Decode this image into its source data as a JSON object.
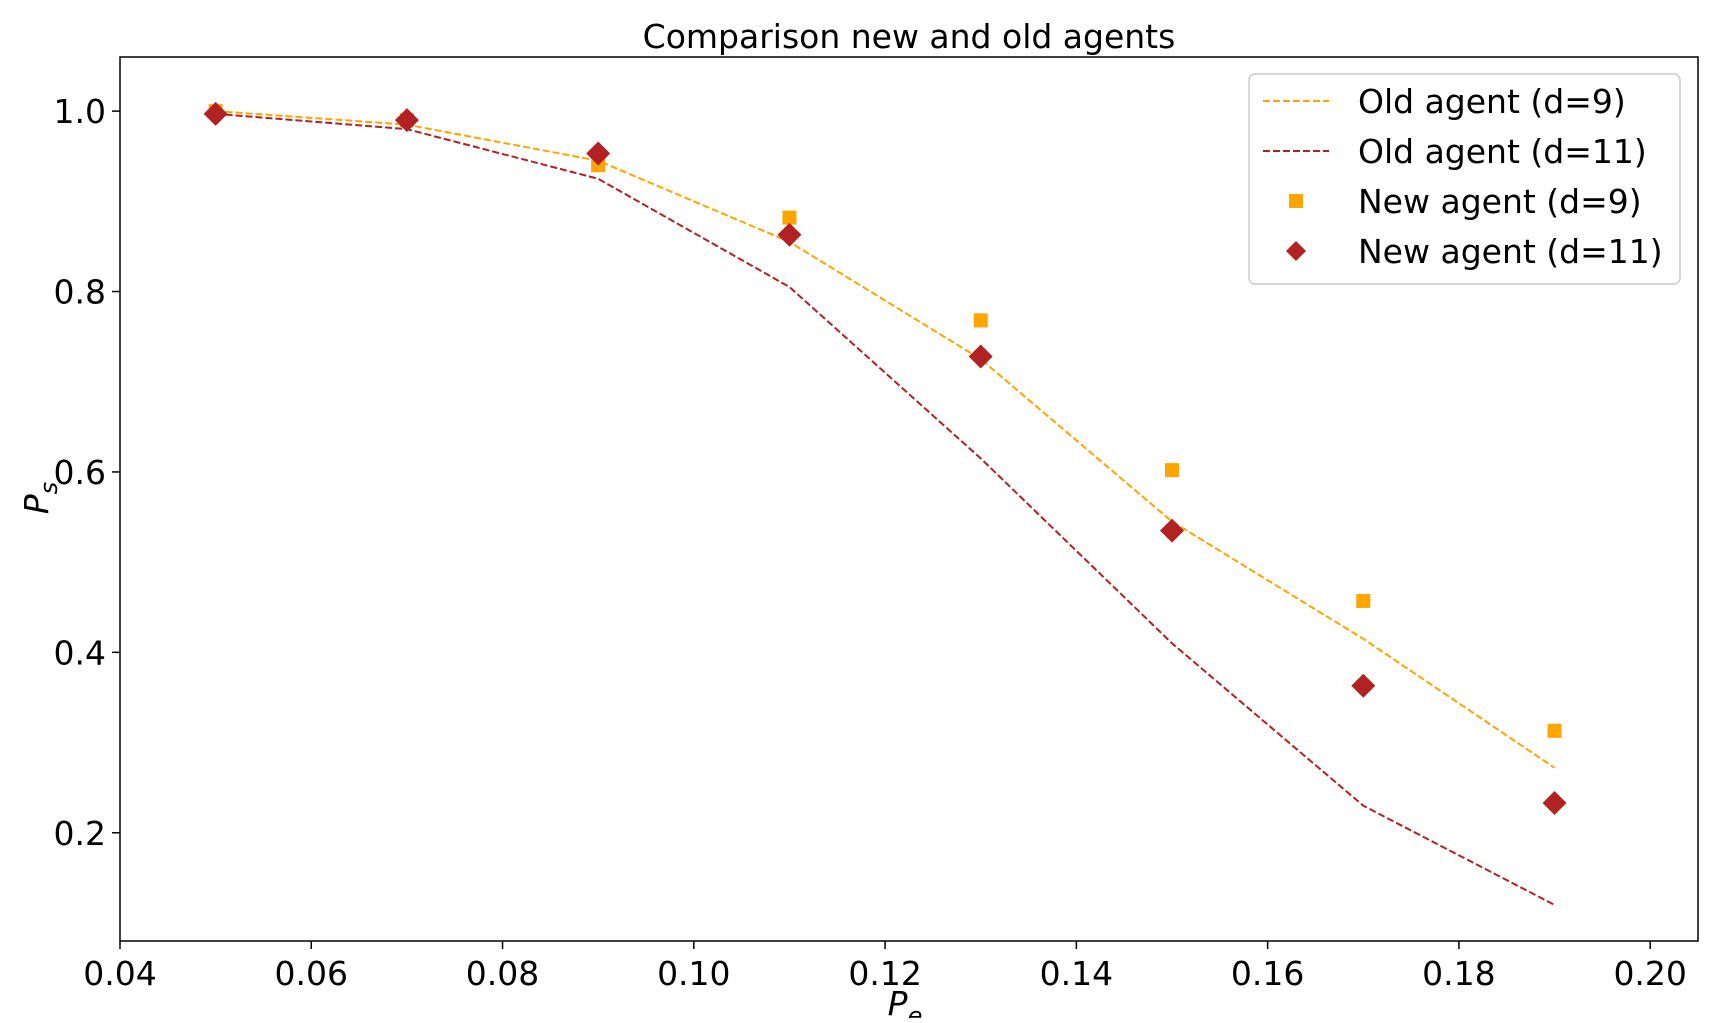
{
  "chart_data": {
    "type": "line",
    "title": "Comparison new and old agents",
    "xlabel": "P",
    "xlabel_sub": "e",
    "ylabel": "P",
    "ylabel_sub": "s",
    "xlim": [
      0.04,
      0.205
    ],
    "ylim": [
      0.08,
      1.06
    ],
    "xticks": [
      0.04,
      0.06,
      0.08,
      0.1,
      0.12,
      0.14,
      0.16,
      0.18,
      0.2
    ],
    "xtick_labels": [
      "0.04",
      "0.06",
      "0.08",
      "0.10",
      "0.12",
      "0.14",
      "0.16",
      "0.18",
      "0.20"
    ],
    "yticks": [
      0.2,
      0.4,
      0.6,
      0.8,
      1.0
    ],
    "ytick_labels": [
      "0.2",
      "0.4",
      "0.6",
      "0.8",
      "1.0"
    ],
    "grid": false,
    "legend_position": "top-right",
    "x": [
      0.05,
      0.07,
      0.09,
      0.11,
      0.13,
      0.15,
      0.17,
      0.19
    ],
    "series": [
      {
        "name": "Old agent (d=9)",
        "kind": "dashed-line",
        "color": "#FFA500",
        "values": [
          1.0,
          0.985,
          0.945,
          0.855,
          0.725,
          0.545,
          0.415,
          0.272
        ]
      },
      {
        "name": "Old agent (d=11)",
        "kind": "dashed-line",
        "color": "#B22222",
        "values": [
          0.997,
          0.98,
          0.925,
          0.805,
          0.615,
          0.41,
          0.23,
          0.12
        ]
      },
      {
        "name": "New agent (d=9)",
        "kind": "square-marker",
        "color": "#FFA500",
        "values": [
          1.0,
          0.99,
          0.94,
          0.882,
          0.768,
          0.602,
          0.457,
          0.313
        ]
      },
      {
        "name": "New agent (d=11)",
        "kind": "diamond-marker",
        "color": "#B22222",
        "values": [
          0.997,
          0.99,
          0.953,
          0.863,
          0.728,
          0.535,
          0.363,
          0.233
        ]
      }
    ]
  }
}
